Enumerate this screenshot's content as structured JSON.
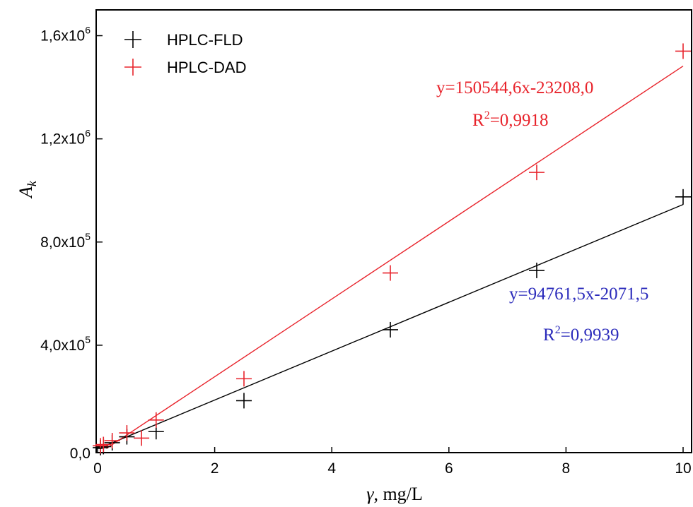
{
  "chart_data": {
    "type": "scatter",
    "xlabel": "γ, mg/L",
    "ylabel": "A_k",
    "xlim": [
      0,
      10
    ],
    "ylim": [
      0,
      1700000
    ],
    "grid": false,
    "legend": "top-left",
    "x_ticks": [
      {
        "value": 0,
        "label": "0"
      },
      {
        "value": 2,
        "label": "2"
      },
      {
        "value": 4,
        "label": "4"
      },
      {
        "value": 6,
        "label": "6"
      },
      {
        "value": 8,
        "label": "8"
      },
      {
        "value": 10,
        "label": "10"
      }
    ],
    "y_ticks": [
      {
        "value": 0,
        "mant": "0,0",
        "exp": ""
      },
      {
        "value": 400000,
        "mant": "4,0x10",
        "exp": "5"
      },
      {
        "value": 800000,
        "mant": "8,0x10",
        "exp": "5"
      },
      {
        "value": 1200000,
        "mant": "1,2x10",
        "exp": "6"
      },
      {
        "value": 1600000,
        "mant": "1,6x10",
        "exp": "6"
      }
    ],
    "series": [
      {
        "name": "HPLC-FLD",
        "color": "#000000",
        "points": [
          {
            "x": 0.05,
            "y": 3000
          },
          {
            "x": 0.1,
            "y": 7000
          },
          {
            "x": 0.25,
            "y": 22000
          },
          {
            "x": 0.5,
            "y": 45000
          },
          {
            "x": 1.0,
            "y": 65000
          },
          {
            "x": 2.5,
            "y": 185000
          },
          {
            "x": 5.0,
            "y": 460000
          },
          {
            "x": 7.5,
            "y": 690000
          },
          {
            "x": 10.0,
            "y": 975000
          }
        ],
        "fit": {
          "slope": 94761.5,
          "intercept": -2071.5
        }
      },
      {
        "name": "HPLC-DAD",
        "color": "#e8232b",
        "points": [
          {
            "x": 0.05,
            "y": 10000
          },
          {
            "x": 0.1,
            "y": 15000
          },
          {
            "x": 0.25,
            "y": 30000
          },
          {
            "x": 0.5,
            "y": 60000
          },
          {
            "x": 0.75,
            "y": 40000
          },
          {
            "x": 1.0,
            "y": 110000
          },
          {
            "x": 2.5,
            "y": 270000
          },
          {
            "x": 5.0,
            "y": 680000
          },
          {
            "x": 7.5,
            "y": 1070000
          },
          {
            "x": 10.0,
            "y": 1540000
          }
        ],
        "fit": {
          "slope": 150544.6,
          "intercept": -23208.0
        }
      }
    ],
    "annotations": [
      {
        "series": "HPLC-DAD",
        "equation": "y=150544,6x-23208,0",
        "r2_prefix": "R",
        "r2_exp": "2",
        "r2_value": "=0,9918",
        "color": "#e8232b"
      },
      {
        "series": "HPLC-FLD",
        "equation": "y=94761,5x-2071,5",
        "r2_prefix": "R",
        "r2_exp": "2",
        "r2_value": "=0,9939",
        "color": "#2b2bbb"
      }
    ]
  }
}
